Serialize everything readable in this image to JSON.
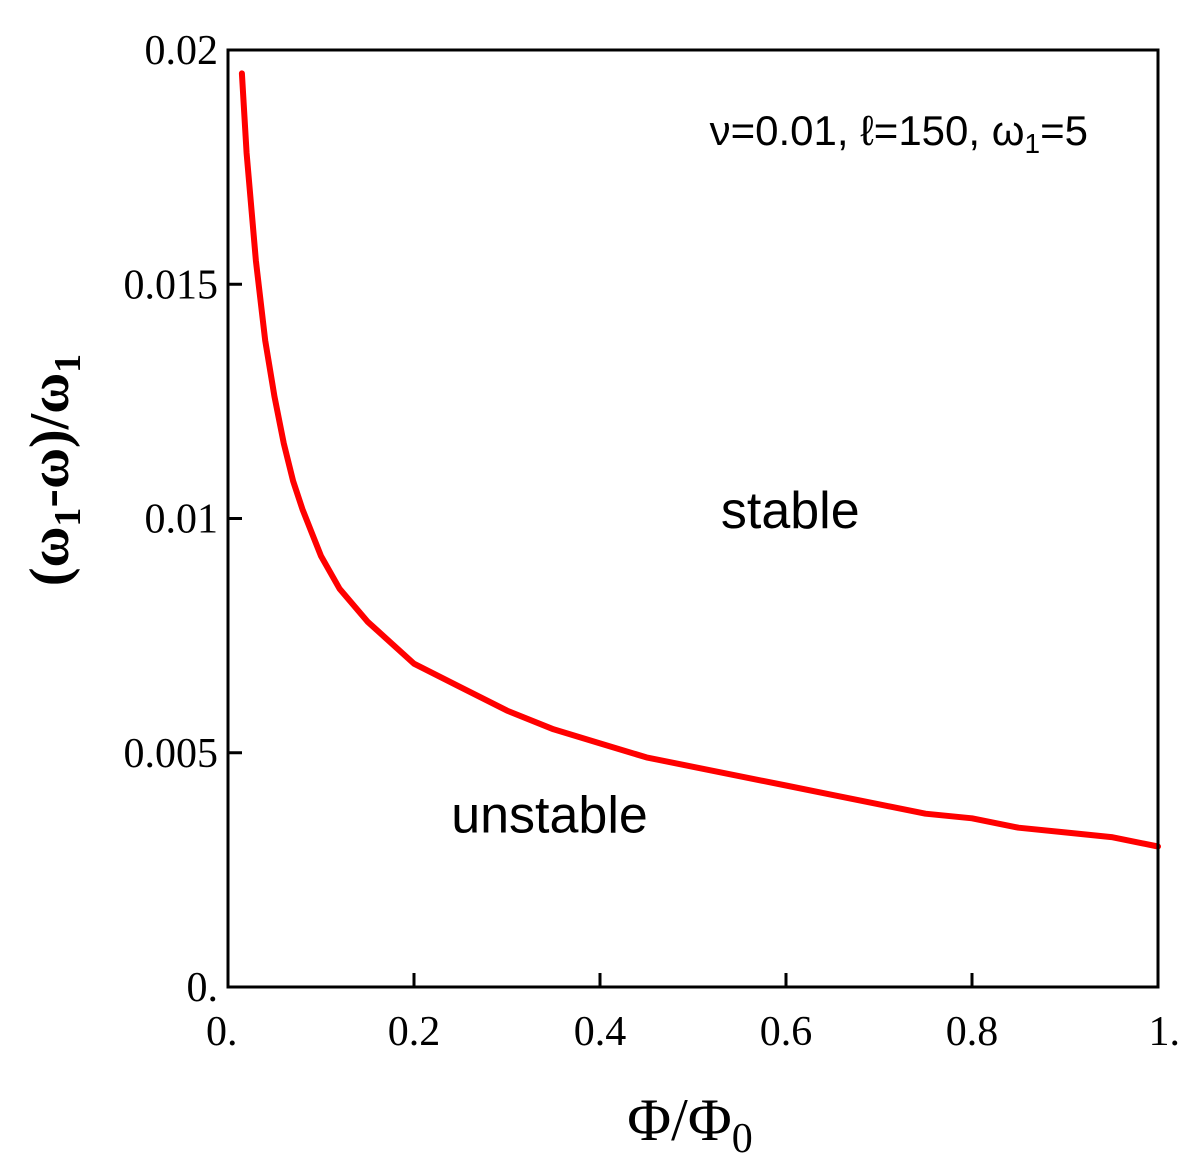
{
  "chart_data": {
    "type": "line",
    "xlabel": {
      "main": "Φ/Φ",
      "sub": "0"
    },
    "ylabel": {
      "open": "(ω",
      "sub1": "1",
      "mid": "-ω)/ω",
      "sub2": "1"
    },
    "annotation": {
      "pre": "ν=0.01, ℓ=150, ω",
      "sub": "1",
      "post": "=5"
    },
    "region_labels": {
      "stable": {
        "text": "stable",
        "x": 0.53,
        "y": 0.0098
      },
      "unstable": {
        "text": "unstable",
        "x": 0.24,
        "y": 0.0033
      }
    },
    "xlim": [
      0,
      1
    ],
    "ylim": [
      0,
      0.02
    ],
    "x_ticks": [
      0,
      0.2,
      0.4,
      0.6,
      0.8,
      1
    ],
    "x_tick_labels": [
      "0.",
      "0.2",
      "0.4",
      "0.6",
      "0.8",
      "1."
    ],
    "y_ticks": [
      0,
      0.005,
      0.01,
      0.015,
      0.02
    ],
    "y_tick_labels": [
      "0.",
      "0.005",
      "0.01",
      "0.015",
      "0.02"
    ],
    "grid": false,
    "series": [
      {
        "color": "#ff0000",
        "x": [
          0.015,
          0.02,
          0.03,
          0.04,
          0.05,
          0.06,
          0.07,
          0.08,
          0.09,
          0.1,
          0.12,
          0.15,
          0.2,
          0.25,
          0.3,
          0.35,
          0.4,
          0.45,
          0.5,
          0.55,
          0.6,
          0.65,
          0.7,
          0.75,
          0.8,
          0.85,
          0.9,
          0.95,
          1.0
        ],
        "y": [
          0.0195,
          0.0178,
          0.0155,
          0.0138,
          0.0126,
          0.0116,
          0.0108,
          0.0102,
          0.0097,
          0.0092,
          0.0085,
          0.0078,
          0.0069,
          0.0064,
          0.0059,
          0.0055,
          0.0052,
          0.0049,
          0.0047,
          0.0045,
          0.0043,
          0.0041,
          0.0039,
          0.0037,
          0.0036,
          0.0034,
          0.0033,
          0.0032,
          0.003
        ]
      }
    ]
  }
}
